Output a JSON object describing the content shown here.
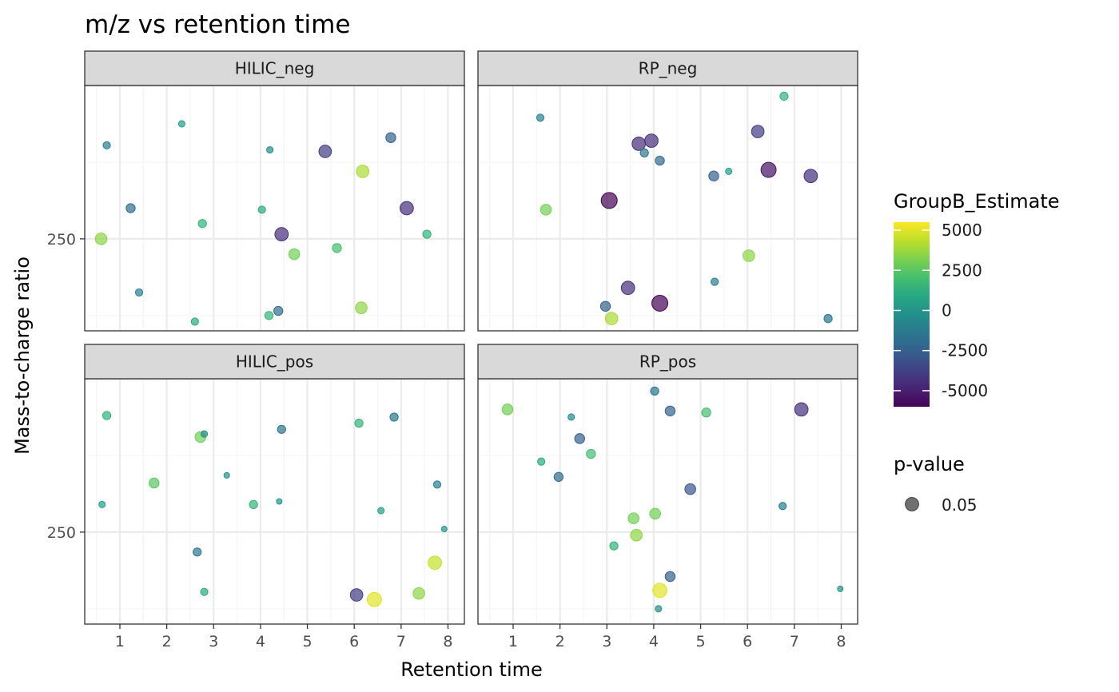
{
  "chart_data": {
    "type": "scatter",
    "title": "m/z vs retention time",
    "xlabel": "Retention time",
    "ylabel": "Mass-to-charge ratio",
    "xlim": [
      0.25,
      8.35
    ],
    "x_ticks": [
      1,
      2,
      3,
      4,
      5,
      6,
      7,
      8
    ],
    "x_tick_labels": [
      "1",
      "2",
      "3",
      "4",
      "5",
      "6",
      "7",
      "8"
    ],
    "ylim": [
      -0.6,
      1.0
    ],
    "y_ticks": [
      0
    ],
    "y_tick_labels": [
      "250"
    ],
    "grid": true,
    "panels": [
      {
        "label": "HILIC_neg",
        "points": [
          {
            "x": 0.6,
            "y": 0.0,
            "est": 3500
          },
          {
            "x": 0.72,
            "y": 0.61,
            "est": -1000
          },
          {
            "x": 1.23,
            "y": 0.2,
            "est": -2000
          },
          {
            "x": 1.41,
            "y": -0.35,
            "est": -1000
          },
          {
            "x": 2.32,
            "y": 0.75,
            "est": 500
          },
          {
            "x": 2.6,
            "y": -0.54,
            "est": 1000
          },
          {
            "x": 2.76,
            "y": 0.1,
            "est": 1500
          },
          {
            "x": 4.03,
            "y": 0.19,
            "est": 1000
          },
          {
            "x": 4.2,
            "y": 0.58,
            "est": -500
          },
          {
            "x": 4.18,
            "y": -0.5,
            "est": 1500
          },
          {
            "x": 4.38,
            "y": -0.47,
            "est": -2000
          },
          {
            "x": 4.45,
            "y": 0.03,
            "est": -4500
          },
          {
            "x": 4.72,
            "y": -0.1,
            "est": 3000
          },
          {
            "x": 5.38,
            "y": 0.57,
            "est": -4000
          },
          {
            "x": 5.63,
            "y": -0.06,
            "est": 2000
          },
          {
            "x": 6.15,
            "y": -0.45,
            "est": 3500
          },
          {
            "x": 6.18,
            "y": 0.44,
            "est": 4000
          },
          {
            "x": 6.78,
            "y": 0.66,
            "est": -2500
          },
          {
            "x": 7.12,
            "y": 0.2,
            "est": -4500
          },
          {
            "x": 7.55,
            "y": 0.03,
            "est": 1500
          }
        ]
      },
      {
        "label": "RP_neg",
        "points": [
          {
            "x": 1.58,
            "y": 0.79,
            "est": -1000
          },
          {
            "x": 1.7,
            "y": 0.19,
            "est": 3000
          },
          {
            "x": 2.97,
            "y": -0.44,
            "est": -2500
          },
          {
            "x": 3.05,
            "y": 0.25,
            "est": -6000
          },
          {
            "x": 3.1,
            "y": -0.52,
            "est": 4000
          },
          {
            "x": 3.45,
            "y": -0.32,
            "est": -4500
          },
          {
            "x": 3.68,
            "y": 0.62,
            "est": -4500
          },
          {
            "x": 3.8,
            "y": 0.56,
            "est": -1500
          },
          {
            "x": 3.95,
            "y": 0.64,
            "est": -4500
          },
          {
            "x": 4.13,
            "y": 0.51,
            "est": -2000
          },
          {
            "x": 4.13,
            "y": -0.42,
            "est": -6000
          },
          {
            "x": 5.28,
            "y": 0.41,
            "est": -2500
          },
          {
            "x": 5.3,
            "y": -0.28,
            "est": -1000
          },
          {
            "x": 5.6,
            "y": 0.44,
            "est": 500
          },
          {
            "x": 6.03,
            "y": -0.11,
            "est": 3500
          },
          {
            "x": 6.22,
            "y": 0.7,
            "est": -4000
          },
          {
            "x": 6.45,
            "y": 0.45,
            "est": -5500
          },
          {
            "x": 6.78,
            "y": 0.93,
            "est": 1500
          },
          {
            "x": 7.35,
            "y": 0.41,
            "est": -4500
          },
          {
            "x": 7.72,
            "y": -0.52,
            "est": -1500
          }
        ]
      },
      {
        "label": "HILIC_pos",
        "points": [
          {
            "x": 0.62,
            "y": 0.18,
            "est": 500
          },
          {
            "x": 0.72,
            "y": 0.76,
            "est": 1500
          },
          {
            "x": 1.73,
            "y": 0.32,
            "est": 2500
          },
          {
            "x": 2.65,
            "y": -0.13,
            "est": -1500
          },
          {
            "x": 2.72,
            "y": 0.62,
            "est": 3000
          },
          {
            "x": 2.8,
            "y": 0.64,
            "est": -500
          },
          {
            "x": 2.8,
            "y": -0.39,
            "est": 1000
          },
          {
            "x": 3.28,
            "y": 0.37,
            "est": 0
          },
          {
            "x": 3.85,
            "y": 0.18,
            "est": 1500
          },
          {
            "x": 4.4,
            "y": 0.2,
            "est": 0
          },
          {
            "x": 4.45,
            "y": 0.67,
            "est": -1500
          },
          {
            "x": 6.05,
            "y": -0.41,
            "est": -4000
          },
          {
            "x": 6.1,
            "y": 0.71,
            "est": 1500
          },
          {
            "x": 6.43,
            "y": -0.44,
            "est": 5000
          },
          {
            "x": 6.57,
            "y": 0.14,
            "est": 500
          },
          {
            "x": 6.85,
            "y": 0.75,
            "est": -1500
          },
          {
            "x": 7.38,
            "y": -0.4,
            "est": 3500
          },
          {
            "x": 7.72,
            "y": -0.2,
            "est": 4500
          },
          {
            "x": 7.77,
            "y": 0.31,
            "est": -1000
          },
          {
            "x": 7.92,
            "y": 0.02,
            "est": 0
          }
        ]
      },
      {
        "label": "RP_pos",
        "points": [
          {
            "x": 0.88,
            "y": 0.8,
            "est": 3000
          },
          {
            "x": 1.6,
            "y": 0.46,
            "est": 1000
          },
          {
            "x": 1.97,
            "y": 0.36,
            "est": -2000
          },
          {
            "x": 2.24,
            "y": 0.75,
            "est": -500
          },
          {
            "x": 2.42,
            "y": 0.61,
            "est": -2500
          },
          {
            "x": 2.66,
            "y": 0.51,
            "est": 2000
          },
          {
            "x": 3.15,
            "y": -0.09,
            "est": 1500
          },
          {
            "x": 3.57,
            "y": 0.09,
            "est": 3000
          },
          {
            "x": 3.63,
            "y": -0.02,
            "est": 3500
          },
          {
            "x": 4.02,
            "y": 0.92,
            "est": -1500
          },
          {
            "x": 4.03,
            "y": 0.12,
            "est": 3000
          },
          {
            "x": 4.1,
            "y": -0.5,
            "est": -500
          },
          {
            "x": 4.13,
            "y": -0.38,
            "est": 5000
          },
          {
            "x": 4.35,
            "y": 0.79,
            "est": -2500
          },
          {
            "x": 4.35,
            "y": -0.29,
            "est": -2500
          },
          {
            "x": 4.78,
            "y": 0.28,
            "est": -3000
          },
          {
            "x": 5.12,
            "y": 0.78,
            "est": 2000
          },
          {
            "x": 6.75,
            "y": 0.17,
            "est": -1000
          },
          {
            "x": 7.15,
            "y": 0.8,
            "est": -4500
          },
          {
            "x": 7.98,
            "y": -0.37,
            "est": 0
          }
        ]
      }
    ],
    "legend_color": {
      "title": "GroupB_Estimate",
      "tick_values": [
        5000,
        2500,
        0,
        -2500,
        -5000
      ],
      "tick_labels": [
        "5000",
        "2500",
        "0",
        "-2500",
        "-5000"
      ],
      "range": [
        -6000,
        5500
      ],
      "palette": "viridis"
    },
    "legend_size": {
      "title": "p-value",
      "entries": [
        "0.05"
      ]
    },
    "colors": {
      "strip_fill": "#d9d9d9",
      "panel_border": "#333333",
      "grid_major": "#ebebeb",
      "grid_minor": "#f5f5f5"
    }
  }
}
